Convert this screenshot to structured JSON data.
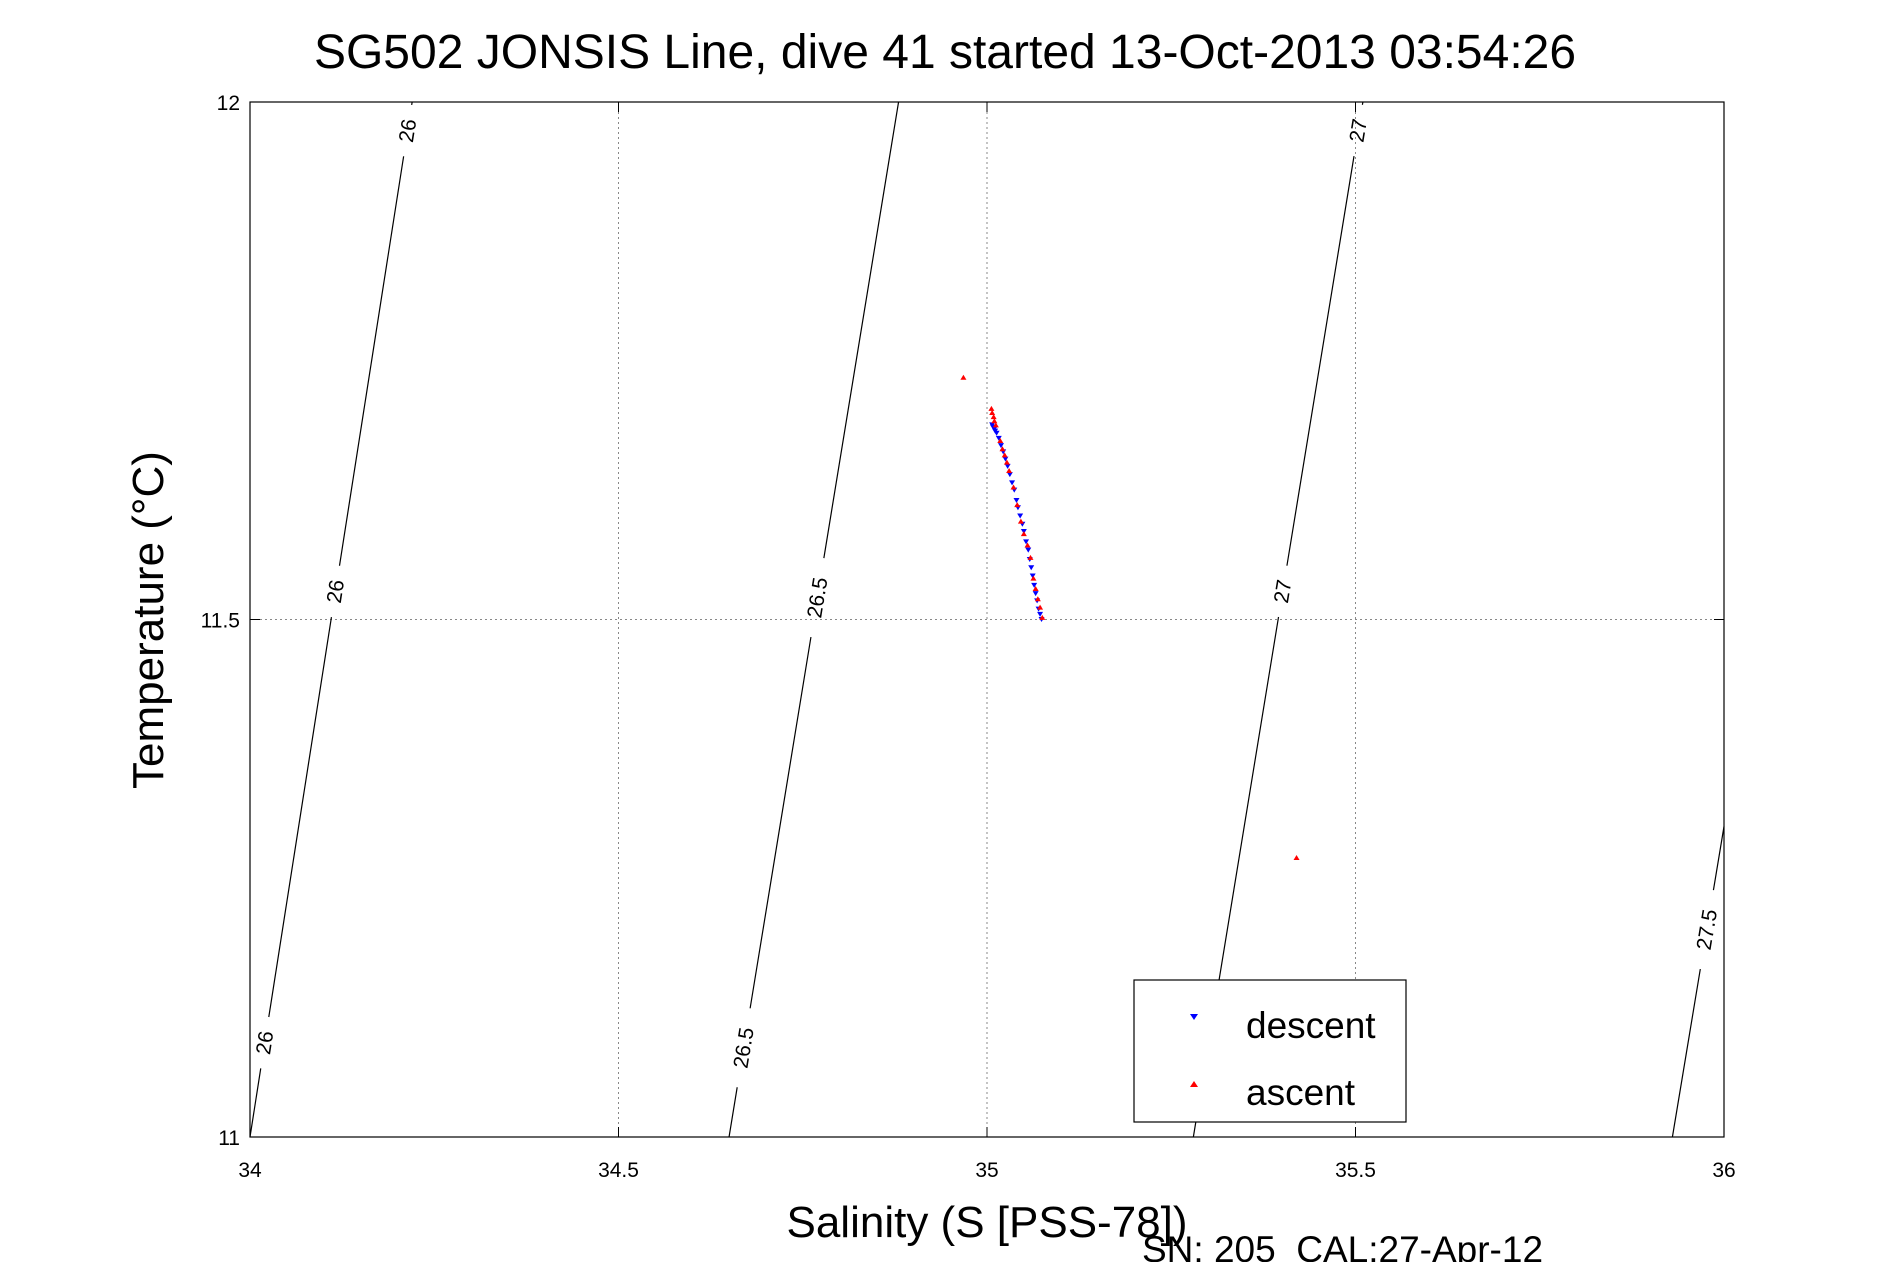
{
  "chart_data": {
    "type": "scatter",
    "title": "SG502 JONSIS Line, dive 41 started 13-Oct-2013 03:54:26",
    "xlabel": "Salinity (S [PSS-78])",
    "ylabel": "Temperature (°C)",
    "xlim": [
      34,
      36
    ],
    "ylim": [
      11,
      12
    ],
    "xticks": [
      34,
      34.5,
      35,
      35.5,
      36
    ],
    "yticks": [
      11,
      11.5,
      12
    ],
    "xtick_labels": [
      "34",
      "34.5",
      "35",
      "35.5",
      "36"
    ],
    "ytick_labels": [
      "11",
      "11.5",
      "12"
    ],
    "grid": true,
    "legend_position": "bottom-right",
    "footer": "SN: 205  CAL:27-Apr-12",
    "isopycnals": [
      {
        "label": "26",
        "points": [
          [
            34.0,
            11.0
          ],
          [
            34.22,
            12.0
          ]
        ],
        "label_positions": [
          [
            34.03,
            11.09
          ],
          [
            34.135,
            11.525
          ],
          [
            34.235,
            11.97
          ]
        ]
      },
      {
        "label": "26.5",
        "points": [
          [
            34.65,
            11.0
          ],
          [
            34.88,
            12.0
          ]
        ],
        "label_positions": [
          [
            34.68,
            11.085
          ],
          [
            34.78,
            11.52
          ]
        ]
      },
      {
        "label": "27",
        "points": [
          [
            35.28,
            11.0
          ],
          [
            35.51,
            12.0
          ]
        ],
        "label_positions": [
          [
            35.42,
            11.525
          ],
          [
            35.525,
            11.97
          ]
        ]
      },
      {
        "label": "27.5",
        "points": [
          [
            35.93,
            11.0
          ],
          [
            36.0,
            11.3
          ]
        ],
        "label_positions": [
          [
            35.98,
            11.2
          ]
        ]
      }
    ],
    "series": [
      {
        "name": "descent",
        "color": "#0000ff",
        "marker": "triangle-down",
        "x": [
          35.007,
          35.008,
          35.01,
          35.011,
          35.013,
          35.016,
          35.019,
          35.022,
          35.025,
          35.028,
          35.031,
          35.034,
          35.037,
          35.04,
          35.042,
          35.045,
          35.048,
          35.05,
          35.053,
          35.056,
          35.058,
          35.06,
          35.062,
          35.064,
          35.066,
          35.068,
          35.07,
          35.072,
          35.074
        ],
        "y": [
          11.688,
          11.686,
          11.684,
          11.682,
          11.68,
          11.675,
          11.668,
          11.662,
          11.655,
          11.648,
          11.64,
          11.632,
          11.625,
          11.615,
          11.608,
          11.6,
          11.592,
          11.585,
          11.575,
          11.567,
          11.558,
          11.55,
          11.542,
          11.533,
          11.525,
          11.518,
          11.51,
          11.505,
          11.5
        ]
      },
      {
        "name": "ascent",
        "color": "#ff0000",
        "marker": "triangle-up",
        "x": [
          34.968,
          35.006,
          35.007,
          35.009,
          35.01,
          35.012,
          35.018,
          35.021,
          35.024,
          35.027,
          35.03,
          35.036,
          35.041,
          35.046,
          35.05,
          35.055,
          35.059,
          35.063,
          35.066,
          35.069,
          35.072,
          35.075,
          35.42
        ],
        "y": [
          11.734,
          11.704,
          11.7,
          11.696,
          11.692,
          11.688,
          11.673,
          11.665,
          11.659,
          11.652,
          11.644,
          11.628,
          11.611,
          11.595,
          11.583,
          11.572,
          11.56,
          11.54,
          11.53,
          11.52,
          11.512,
          11.502,
          11.27
        ]
      }
    ]
  }
}
